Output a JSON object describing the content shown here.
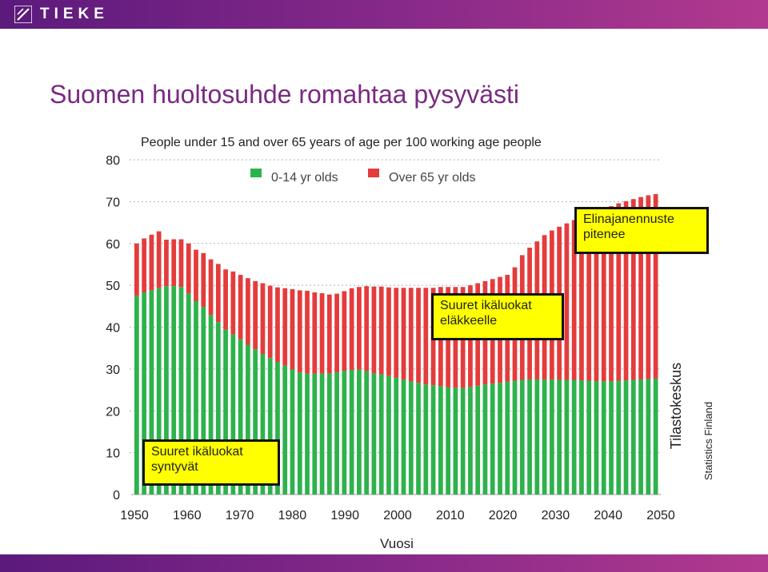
{
  "header": {
    "logo_text": "TIEKE",
    "colors": {
      "bar": "#7a2a82"
    }
  },
  "slide": {
    "title": "Suomen huoltosuhde romahtaa pysyvästi",
    "source_primary": "Tilastokeskus",
    "source_secondary": "Statistics Finland"
  },
  "callouts": {
    "baby_boom": "Suuret ikäluokat syntyvät",
    "retirement": "Suuret ikäluokat eläkkeelle",
    "life_expectancy": "Elinajanennuste pitenee"
  },
  "chart_data": {
    "type": "bar",
    "stacked": true,
    "title": "People under 15 and over 65 years of age per 100 working age people",
    "xlabel": "Vuosi",
    "ylabel": "",
    "ylim": [
      0,
      80
    ],
    "yticks": [
      0,
      10,
      20,
      30,
      40,
      50,
      60,
      70,
      80
    ],
    "xticks": [
      "1950",
      "1960",
      "1970",
      "1980",
      "1990",
      "2000",
      "2010",
      "2020",
      "2030",
      "2040",
      "2050"
    ],
    "grid": "horizontal dashed",
    "legend": "top-center",
    "colors": {
      "young": "#2eb24c",
      "old": "#e43c3c"
    },
    "series": [
      {
        "name": "0-14 yr olds",
        "values": [
          47.5,
          48.3,
          48.8,
          49.3,
          49.8,
          49.8,
          49.6,
          48.1,
          46.2,
          44.8,
          42.9,
          41.2,
          39.4,
          38.3,
          37.1,
          35.8,
          34.7,
          33.6,
          32.6,
          31.7,
          30.8,
          29.9,
          29.2,
          28.9,
          28.9,
          28.9,
          28.9,
          29.2,
          29.6,
          29.8,
          29.9,
          29.5,
          29.0,
          28.7,
          28.3,
          27.9,
          27.5,
          27.1,
          26.7,
          26.3,
          26.1,
          25.9,
          25.6,
          25.5,
          25.5,
          25.7,
          26.0,
          26.3,
          26.5,
          26.7,
          27.0,
          27.2,
          27.4,
          27.5,
          27.5,
          27.5,
          27.5,
          27.4,
          27.4,
          27.4,
          27.3,
          27.2,
          27.1,
          27.1,
          27.1,
          27.2,
          27.3,
          27.4,
          27.5,
          27.6,
          27.7
        ]
      },
      {
        "name": "Over 65 yr olds",
        "values": [
          12.5,
          12.9,
          13.3,
          13.6,
          11.1,
          11.2,
          11.4,
          11.9,
          12.3,
          12.9,
          13.3,
          13.9,
          14.4,
          15.0,
          15.4,
          15.9,
          16.3,
          16.9,
          17.3,
          17.8,
          18.5,
          19.2,
          19.6,
          19.8,
          19.4,
          19.2,
          18.9,
          18.8,
          19.0,
          19.5,
          19.7,
          20.3,
          20.7,
          21.0,
          21.2,
          21.5,
          21.9,
          22.3,
          22.7,
          23.1,
          23.3,
          23.7,
          24.0,
          24.1,
          24.1,
          24.3,
          24.5,
          24.7,
          25.0,
          25.3,
          25.5,
          27.1,
          29.8,
          31.5,
          33.0,
          34.5,
          35.6,
          36.6,
          37.4,
          38.2,
          39.0,
          39.8,
          40.6,
          41.2,
          41.8,
          42.4,
          42.8,
          43.2,
          43.6,
          43.9,
          44.1
        ]
      }
    ]
  }
}
